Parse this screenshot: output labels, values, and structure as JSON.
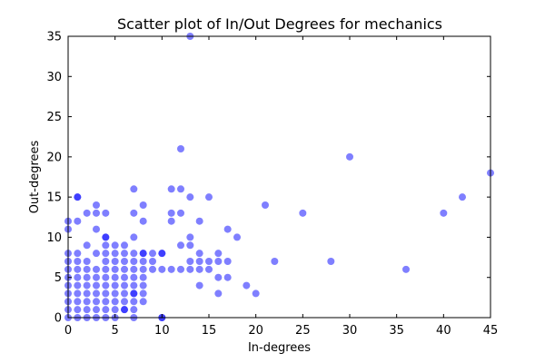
{
  "chart_data": {
    "type": "scatter",
    "title": "Scatter plot of In/Out Degrees for mechanics",
    "xlabel": "In-degrees",
    "ylabel": "Out-degrees",
    "xlim": [
      0,
      45
    ],
    "ylim": [
      0,
      35
    ],
    "xticks": [
      0,
      5,
      10,
      15,
      20,
      25,
      30,
      35,
      40,
      45
    ],
    "yticks": [
      0,
      5,
      10,
      15,
      20,
      25,
      30,
      35
    ],
    "grid": false,
    "color": "#0000ff",
    "alpha": 0.5,
    "points": [
      [
        0,
        0
      ],
      [
        0,
        1
      ],
      [
        0,
        2
      ],
      [
        0,
        3
      ],
      [
        0,
        4
      ],
      [
        0,
        5
      ],
      [
        0,
        6
      ],
      [
        0,
        7
      ],
      [
        0,
        8
      ],
      [
        0,
        11
      ],
      [
        0,
        12
      ],
      [
        1,
        0
      ],
      [
        1,
        1
      ],
      [
        1,
        2
      ],
      [
        1,
        3
      ],
      [
        1,
        4
      ],
      [
        1,
        5
      ],
      [
        1,
        6
      ],
      [
        1,
        7
      ],
      [
        1,
        8
      ],
      [
        1,
        12
      ],
      [
        1,
        15
      ],
      [
        1,
        15
      ],
      [
        2,
        0
      ],
      [
        2,
        1
      ],
      [
        2,
        2
      ],
      [
        2,
        3
      ],
      [
        2,
        4
      ],
      [
        2,
        5
      ],
      [
        2,
        6
      ],
      [
        2,
        7
      ],
      [
        2,
        9
      ],
      [
        2,
        13
      ],
      [
        3,
        0
      ],
      [
        3,
        1
      ],
      [
        3,
        2
      ],
      [
        3,
        3
      ],
      [
        3,
        4
      ],
      [
        3,
        5
      ],
      [
        3,
        6
      ],
      [
        3,
        8
      ],
      [
        3,
        11
      ],
      [
        3,
        13
      ],
      [
        3,
        14
      ],
      [
        4,
        0
      ],
      [
        4,
        1
      ],
      [
        4,
        2
      ],
      [
        4,
        3
      ],
      [
        4,
        4
      ],
      [
        4,
        5
      ],
      [
        4,
        6
      ],
      [
        4,
        7
      ],
      [
        4,
        8
      ],
      [
        4,
        9
      ],
      [
        4,
        10
      ],
      [
        4,
        10
      ],
      [
        4,
        13
      ],
      [
        5,
        0
      ],
      [
        5,
        1
      ],
      [
        5,
        2
      ],
      [
        5,
        3
      ],
      [
        5,
        4
      ],
      [
        5,
        5
      ],
      [
        5,
        6
      ],
      [
        5,
        7
      ],
      [
        5,
        8
      ],
      [
        5,
        9
      ],
      [
        6,
        1
      ],
      [
        6,
        1
      ],
      [
        6,
        2
      ],
      [
        6,
        3
      ],
      [
        6,
        4
      ],
      [
        6,
        5
      ],
      [
        6,
        6
      ],
      [
        6,
        7
      ],
      [
        6,
        8
      ],
      [
        6,
        9
      ],
      [
        7,
        0
      ],
      [
        7,
        1
      ],
      [
        7,
        2
      ],
      [
        7,
        3
      ],
      [
        7,
        3
      ],
      [
        7,
        4
      ],
      [
        7,
        5
      ],
      [
        7,
        6
      ],
      [
        7,
        7
      ],
      [
        7,
        8
      ],
      [
        7,
        10
      ],
      [
        7,
        13
      ],
      [
        7,
        16
      ],
      [
        8,
        2
      ],
      [
        8,
        3
      ],
      [
        8,
        4
      ],
      [
        8,
        5
      ],
      [
        8,
        6
      ],
      [
        8,
        7
      ],
      [
        8,
        8
      ],
      [
        8,
        8
      ],
      [
        8,
        12
      ],
      [
        8,
        14
      ],
      [
        9,
        6
      ],
      [
        9,
        7
      ],
      [
        9,
        8
      ],
      [
        10,
        0
      ],
      [
        10,
        0
      ],
      [
        10,
        6
      ],
      [
        10,
        8
      ],
      [
        10,
        8
      ],
      [
        11,
        6
      ],
      [
        11,
        12
      ],
      [
        11,
        13
      ],
      [
        11,
        16
      ],
      [
        12,
        6
      ],
      [
        12,
        9
      ],
      [
        12,
        13
      ],
      [
        12,
        16
      ],
      [
        12,
        21
      ],
      [
        13,
        6
      ],
      [
        13,
        7
      ],
      [
        13,
        9
      ],
      [
        13,
        10
      ],
      [
        13,
        15
      ],
      [
        13,
        35
      ],
      [
        14,
        4
      ],
      [
        14,
        6
      ],
      [
        14,
        7
      ],
      [
        14,
        8
      ],
      [
        14,
        12
      ],
      [
        15,
        6
      ],
      [
        15,
        7
      ],
      [
        15,
        15
      ],
      [
        16,
        3
      ],
      [
        16,
        5
      ],
      [
        16,
        7
      ],
      [
        16,
        8
      ],
      [
        17,
        5
      ],
      [
        17,
        7
      ],
      [
        17,
        11
      ],
      [
        18,
        10
      ],
      [
        19,
        4
      ],
      [
        20,
        3
      ],
      [
        21,
        14
      ],
      [
        22,
        7
      ],
      [
        25,
        13
      ],
      [
        28,
        7
      ],
      [
        30,
        20
      ],
      [
        36,
        6
      ],
      [
        40,
        13
      ],
      [
        42,
        15
      ],
      [
        45,
        18
      ]
    ]
  }
}
